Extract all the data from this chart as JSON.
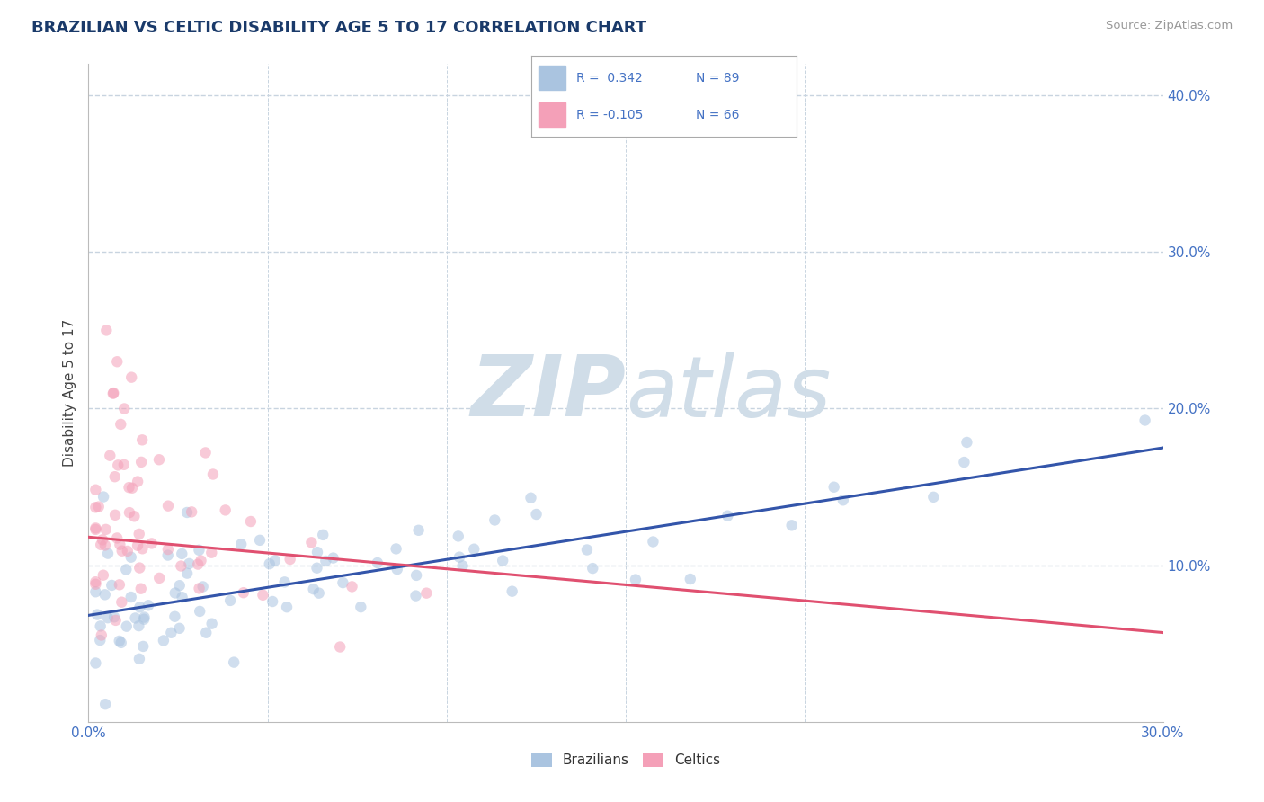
{
  "title": "BRAZILIAN VS CELTIC DISABILITY AGE 5 TO 17 CORRELATION CHART",
  "source": "Source: ZipAtlas.com",
  "ylabel": "Disability Age 5 to 17",
  "xlim": [
    0.0,
    0.3
  ],
  "ylim": [
    0.0,
    0.42
  ],
  "ytick_vals": [
    0.1,
    0.2,
    0.3,
    0.4
  ],
  "ytick_labels": [
    "10.0%",
    "20.0%",
    "30.0%",
    "40.0%"
  ],
  "xtick_vals": [
    0.0,
    0.05,
    0.1,
    0.15,
    0.2,
    0.25,
    0.3
  ],
  "xtick_labels": [
    "0.0%",
    "",
    "",
    "",
    "",
    "",
    "30.0%"
  ],
  "legend_r_brazilian": "R =  0.342",
  "legend_n_brazilian": "N = 89",
  "legend_r_celtic": "R = -0.105",
  "legend_n_celtic": "N = 66",
  "color_brazilian": "#aac4e0",
  "color_celtic": "#f4a0b8",
  "color_trend_brazilian": "#3355aa",
  "color_trend_celtic": "#e05070",
  "watermark_zip": "ZIP",
  "watermark_atlas": "atlas",
  "watermark_color": "#d0dde8",
  "background_color": "#ffffff",
  "grid_color": "#c8d4e0",
  "title_color": "#1a3a6a",
  "axis_label_color": "#4472c4",
  "tick_color": "#4472c4",
  "scatter_alpha": 0.55,
  "scatter_size": 80,
  "trend_blue_x0": 0.0,
  "trend_blue_y0": 0.068,
  "trend_blue_x1": 0.3,
  "trend_blue_y1": 0.175,
  "trend_pink_x0": 0.0,
  "trend_pink_y0": 0.118,
  "trend_pink_x1": 0.3,
  "trend_pink_y1": 0.057
}
